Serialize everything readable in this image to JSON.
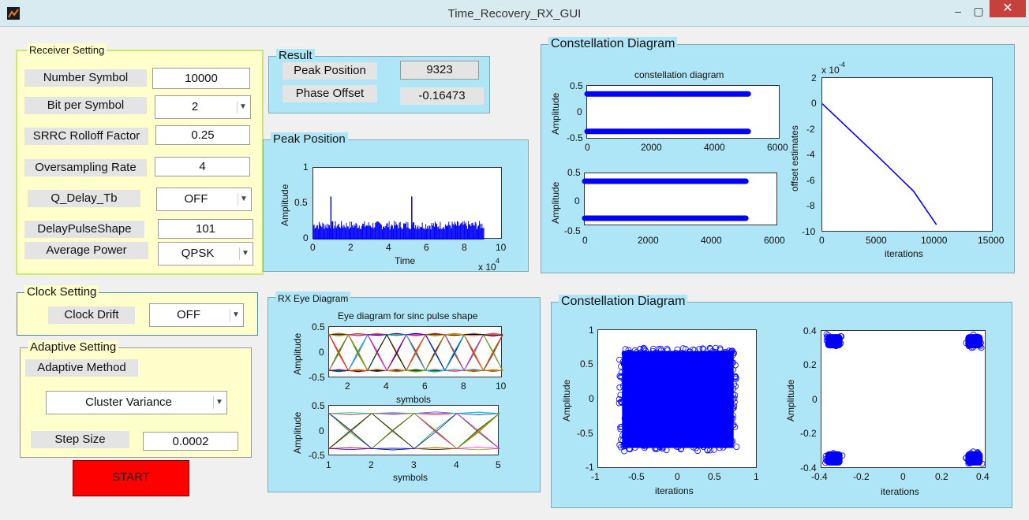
{
  "window": {
    "title": "Time_Recovery_RX_GUI",
    "minimize_glyph": "–",
    "maximize_glyph": "▢",
    "close_glyph": "✕",
    "app_icon": "matlab-icon"
  },
  "receiver": {
    "title": "Receiver Setting",
    "number_symbol_label": "Number Symbol",
    "number_symbol_value": "10000",
    "bit_per_symbol_label": "Bit per Symbol",
    "bit_per_symbol_value": "2",
    "srrc_label": "SRRC Rolloff Factor",
    "srrc_value": "0.25",
    "oversampling_label": "Oversampling Rate",
    "oversampling_value": "4",
    "q_delay_label": "Q_Delay_Tb",
    "q_delay_value": "OFF",
    "delay_pulse_label": "DelayPulseShape",
    "delay_pulse_value": "101",
    "avg_power_label": "Average Power",
    "avg_power_value": "QPSK"
  },
  "result": {
    "title": "Result",
    "peak_label": "Peak Position",
    "peak_value": "9323",
    "phase_label": "Phase Offset",
    "phase_value": "-0.16473"
  },
  "clock": {
    "title": "Clock Setting",
    "drift_label": "Clock Drift",
    "drift_value": "OFF"
  },
  "adaptive": {
    "title": "Adaptive Setting",
    "method_label": "Adaptive Method",
    "method_value": "Cluster Variance",
    "step_label": "Step Size",
    "step_value": "0.0002"
  },
  "start_label": "START",
  "peak_panel": {
    "title": "Peak Position",
    "ylabel": "Amplitude",
    "xlabel": "Time",
    "exponent": "x 10",
    "exponent_power": "4",
    "yticks": [
      "1",
      "0.5",
      "0"
    ],
    "xticks": [
      "0",
      "2",
      "4",
      "6",
      "8",
      "10"
    ]
  },
  "eye_panel": {
    "title": "RX Eye Diagram",
    "plot_title": "Eye diagram for sinc pulse shape",
    "ylabel": "Amplitude",
    "xlabel": "symbols",
    "yticks": [
      "0.5",
      "0",
      "-0.5"
    ],
    "top_xticks": [
      "2",
      "4",
      "6",
      "8",
      "10"
    ],
    "bottom_xticks": [
      "1",
      "2",
      "3",
      "4",
      "5"
    ]
  },
  "const_top": {
    "title": "Constellation Diagram",
    "plot_title": "constellation diagram",
    "ylabel": "Amplitude",
    "yticks": [
      "0.5",
      "0",
      "-0.5"
    ],
    "xticks": [
      "0",
      "2000",
      "4000",
      "6000"
    ],
    "offset_ylabel": "offset estimates",
    "offset_xlabel": "iterations",
    "offset_exponent": "x 10",
    "offset_exponent_power": "-4",
    "offset_yticks": [
      "2",
      "0",
      "-2",
      "-4",
      "-6",
      "-8",
      "-10"
    ],
    "offset_xticks": [
      "0",
      "5000",
      "10000",
      "15000"
    ]
  },
  "const_bottom": {
    "title": "Constellation Diagram",
    "ylabel": "Amplitude",
    "xlabel": "iterations",
    "left_yticks": [
      "1",
      "0.5",
      "0",
      "-0.5",
      "-1"
    ],
    "left_xticks": [
      "-1",
      "-0.5",
      "0",
      "0.5",
      "1"
    ],
    "right_yticks": [
      "0.4",
      "0.2",
      "0",
      "-0.2",
      "-0.4"
    ],
    "right_xticks": [
      "-0.4",
      "-0.2",
      "0",
      "0.2",
      "0.4"
    ]
  },
  "chart_data": [
    {
      "type": "line",
      "title": "",
      "xlabel": "Time",
      "ylabel": "Amplitude",
      "xlim": [
        0,
        100000
      ],
      "ylim": [
        0,
        1
      ],
      "x_scale_note": "x 10^4",
      "series": [
        {
          "name": "",
          "values": [
            [
              0,
              0.2
            ],
            [
              9323,
              0.6
            ],
            [
              52000,
              0.6
            ],
            [
              90000,
              0.2
            ]
          ]
        }
      ]
    },
    {
      "type": "line",
      "title": "Eye diagram for sinc pulse shape",
      "xlabel": "symbols",
      "ylabel": "Amplitude",
      "xlim": [
        1,
        10
      ],
      "ylim": [
        -0.5,
        0.5
      ]
    },
    {
      "type": "line",
      "title": "",
      "xlabel": "symbols",
      "ylabel": "Amplitude",
      "xlim": [
        1,
        5
      ],
      "ylim": [
        -0.5,
        0.5
      ]
    },
    {
      "type": "scatter",
      "title": "constellation diagram",
      "ylabel": "Amplitude",
      "xlim": [
        0,
        6000
      ],
      "ylim": [
        -0.5,
        0.5
      ],
      "series": [
        {
          "name": "",
          "values": [
            [
              0,
              0.35
            ],
            [
              5000,
              0.35
            ],
            [
              0,
              -0.35
            ],
            [
              5000,
              -0.35
            ]
          ]
        }
      ]
    },
    {
      "type": "scatter",
      "title": "",
      "ylabel": "Amplitude",
      "xlim": [
        0,
        6000
      ],
      "ylim": [
        -0.5,
        0.5
      ],
      "series": [
        {
          "name": "",
          "values": [
            [
              0,
              0.35
            ],
            [
              5000,
              0.35
            ],
            [
              0,
              -0.35
            ],
            [
              5000,
              -0.35
            ]
          ]
        }
      ]
    },
    {
      "type": "line",
      "title": "",
      "xlabel": "iterations",
      "ylabel": "offset estimates",
      "xlim": [
        0,
        15000
      ],
      "ylim": [
        -10,
        2
      ],
      "y_scale_note": "x 10^-4",
      "series": [
        {
          "name": "",
          "values": [
            [
              0,
              0
            ],
            [
              5000,
              -4.2
            ],
            [
              8000,
              -6.8
            ],
            [
              10000,
              -9.4
            ]
          ]
        }
      ]
    },
    {
      "type": "scatter",
      "title": "",
      "xlabel": "iterations",
      "ylabel": "Amplitude",
      "xlim": [
        -1,
        1
      ],
      "ylim": [
        -1,
        1
      ],
      "series": [
        {
          "name": "",
          "values": [
            [
              -0.7,
              0.7
            ],
            [
              0.7,
              0.7
            ],
            [
              -0.7,
              -0.7
            ],
            [
              0.7,
              -0.7
            ]
          ]
        }
      ]
    },
    {
      "type": "scatter",
      "title": "",
      "xlabel": "iterations",
      "ylabel": "Amplitude",
      "xlim": [
        -0.4,
        0.4
      ],
      "ylim": [
        -0.4,
        0.4
      ],
      "series": [
        {
          "name": "",
          "values": [
            [
              -0.34,
              0.34
            ],
            [
              0.34,
              0.34
            ],
            [
              -0.34,
              -0.34
            ],
            [
              0.34,
              -0.34
            ]
          ]
        }
      ]
    }
  ],
  "colors": {
    "plot_blue": "#0000ff",
    "panel_cyan": "#aee6f7",
    "panel_yellow": "#ffffcc",
    "start_red": "#ff0000"
  }
}
